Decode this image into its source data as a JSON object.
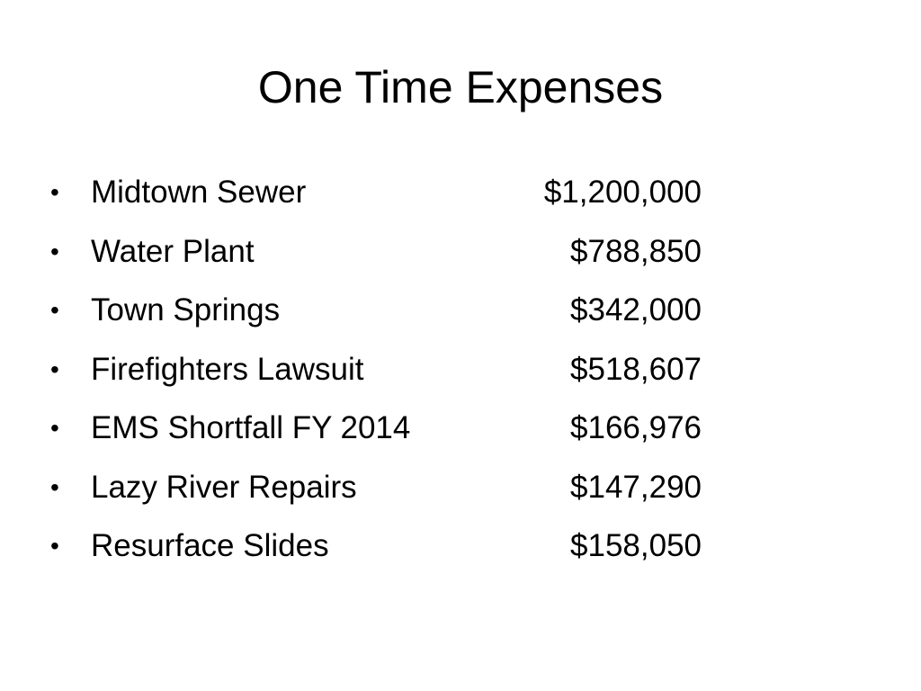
{
  "slide": {
    "title": "One Time Expenses",
    "bullet_glyph": "•",
    "items": [
      {
        "label": "Midtown Sewer",
        "amount": "$1,200,000"
      },
      {
        "label": "Water Plant",
        "amount": "$788,850"
      },
      {
        "label": "Town Springs",
        "amount": "$342,000"
      },
      {
        "label": "Firefighters Lawsuit",
        "amount": "$518,607"
      },
      {
        "label": "EMS Shortfall FY 2014",
        "amount": "$166,976"
      },
      {
        "label": "Lazy River Repairs",
        "amount": "$147,290"
      },
      {
        "label": "Resurface Slides",
        "amount": "$158,050"
      }
    ]
  }
}
